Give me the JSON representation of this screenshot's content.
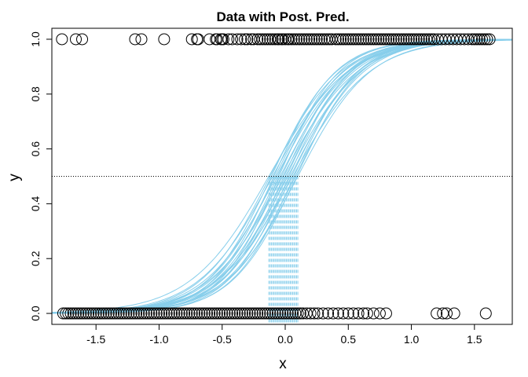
{
  "chart_data": {
    "type": "scatter",
    "title": "Data with Post. Pred.",
    "xlabel": "x",
    "ylabel": "y",
    "xlim": [
      -1.85,
      1.8
    ],
    "ylim": [
      -0.04,
      1.04
    ],
    "x_ticks": [
      -1.5,
      -1.0,
      -0.5,
      0.0,
      0.5,
      1.0,
      1.5
    ],
    "x_tick_labels": [
      "-1.5",
      "-1.0",
      "-0.5",
      "0.0",
      "0.5",
      "1.0",
      "1.5"
    ],
    "y_ticks": [
      0.0,
      0.2,
      0.4,
      0.6,
      0.8,
      1.0
    ],
    "y_tick_labels": [
      "0.0",
      "0.2",
      "0.4",
      "0.6",
      "0.8",
      "1.0"
    ],
    "grid": false,
    "colors": {
      "points": "#000000",
      "curves": "#87ceeb",
      "reference_line": "#000000"
    },
    "reference_line_y": 0.5,
    "points_y1": [
      -1.77,
      -1.66,
      -1.61,
      -1.19,
      -1.14,
      -0.96,
      -0.74,
      -0.7,
      -0.69,
      -0.6,
      -0.55,
      -0.54,
      -0.51,
      -0.5,
      -0.49,
      -0.45,
      -0.42,
      -0.38,
      -0.35,
      -0.32,
      -0.3,
      -0.27,
      -0.25,
      -0.22,
      -0.2,
      -0.18,
      -0.16,
      -0.14,
      -0.12,
      -0.1,
      -0.08,
      -0.06,
      -0.05,
      -0.03,
      -0.02,
      0.0,
      0.02,
      0.03,
      0.05,
      0.07,
      0.09,
      0.11,
      0.13,
      0.15,
      0.17,
      0.19,
      0.21,
      0.23,
      0.25,
      0.27,
      0.29,
      0.31,
      0.33,
      0.35,
      0.37,
      0.4,
      0.42,
      0.44,
      0.46,
      0.48,
      0.5,
      0.52,
      0.54,
      0.56,
      0.58,
      0.6,
      0.62,
      0.64,
      0.66,
      0.68,
      0.7,
      0.72,
      0.74,
      0.76,
      0.78,
      0.8,
      0.82,
      0.84,
      0.86,
      0.88,
      0.9,
      0.92,
      0.94,
      0.96,
      0.98,
      1.0,
      1.02,
      1.04,
      1.06,
      1.08,
      1.1,
      1.12,
      1.14,
      1.16,
      1.18,
      1.21,
      1.24,
      1.27,
      1.3,
      1.33,
      1.36,
      1.39,
      1.42,
      1.45,
      1.48,
      1.5,
      1.52,
      1.54,
      1.56,
      1.58,
      1.6,
      1.62
    ],
    "points_y0": [
      -1.76,
      -1.74,
      -1.72,
      -1.7,
      -1.68,
      -1.66,
      -1.64,
      -1.62,
      -1.6,
      -1.58,
      -1.56,
      -1.54,
      -1.52,
      -1.5,
      -1.48,
      -1.46,
      -1.44,
      -1.42,
      -1.4,
      -1.38,
      -1.36,
      -1.34,
      -1.32,
      -1.3,
      -1.28,
      -1.26,
      -1.24,
      -1.22,
      -1.2,
      -1.18,
      -1.16,
      -1.14,
      -1.12,
      -1.1,
      -1.08,
      -1.06,
      -1.04,
      -1.02,
      -1.0,
      -0.98,
      -0.96,
      -0.94,
      -0.92,
      -0.9,
      -0.88,
      -0.86,
      -0.84,
      -0.82,
      -0.8,
      -0.78,
      -0.76,
      -0.74,
      -0.72,
      -0.7,
      -0.68,
      -0.66,
      -0.64,
      -0.62,
      -0.6,
      -0.58,
      -0.56,
      -0.54,
      -0.52,
      -0.5,
      -0.48,
      -0.46,
      -0.44,
      -0.42,
      -0.4,
      -0.38,
      -0.36,
      -0.34,
      -0.32,
      -0.3,
      -0.28,
      -0.26,
      -0.24,
      -0.22,
      -0.2,
      -0.18,
      -0.16,
      -0.14,
      -0.12,
      -0.1,
      -0.08,
      -0.06,
      -0.04,
      -0.02,
      0.0,
      0.02,
      0.04,
      0.06,
      0.08,
      0.1,
      0.12,
      0.14,
      0.17,
      0.2,
      0.23,
      0.26,
      0.3,
      0.34,
      0.38,
      0.42,
      0.46,
      0.5,
      0.54,
      0.58,
      0.62,
      0.65,
      0.7,
      0.75,
      0.8,
      1.2,
      1.25,
      1.28,
      1.34,
      1.59
    ],
    "posterior_curves": [
      {
        "threshold": -0.13,
        "slope": 3.2
      },
      {
        "threshold": -0.12,
        "slope": 3.6
      },
      {
        "threshold": -0.11,
        "slope": 3.9
      },
      {
        "threshold": -0.1,
        "slope": 3.4
      },
      {
        "threshold": -0.09,
        "slope": 4.1
      },
      {
        "threshold": -0.08,
        "slope": 3.7
      },
      {
        "threshold": -0.07,
        "slope": 3.5
      },
      {
        "threshold": -0.06,
        "slope": 3.9
      },
      {
        "threshold": -0.05,
        "slope": 4.2
      },
      {
        "threshold": -0.04,
        "slope": 3.6
      },
      {
        "threshold": -0.03,
        "slope": 3.8
      },
      {
        "threshold": -0.02,
        "slope": 3.4
      },
      {
        "threshold": -0.01,
        "slope": 4.0
      },
      {
        "threshold": 0.0,
        "slope": 3.7
      },
      {
        "threshold": 0.01,
        "slope": 3.9
      },
      {
        "threshold": 0.02,
        "slope": 3.5
      },
      {
        "threshold": 0.03,
        "slope": 4.1
      },
      {
        "threshold": 0.04,
        "slope": 3.6
      },
      {
        "threshold": 0.05,
        "slope": 3.8
      },
      {
        "threshold": 0.06,
        "slope": 3.3
      },
      {
        "threshold": 0.07,
        "slope": 4.0
      },
      {
        "threshold": 0.08,
        "slope": 3.7
      },
      {
        "threshold": 0.09,
        "slope": 3.9
      },
      {
        "threshold": 0.1,
        "slope": 3.5
      }
    ]
  }
}
